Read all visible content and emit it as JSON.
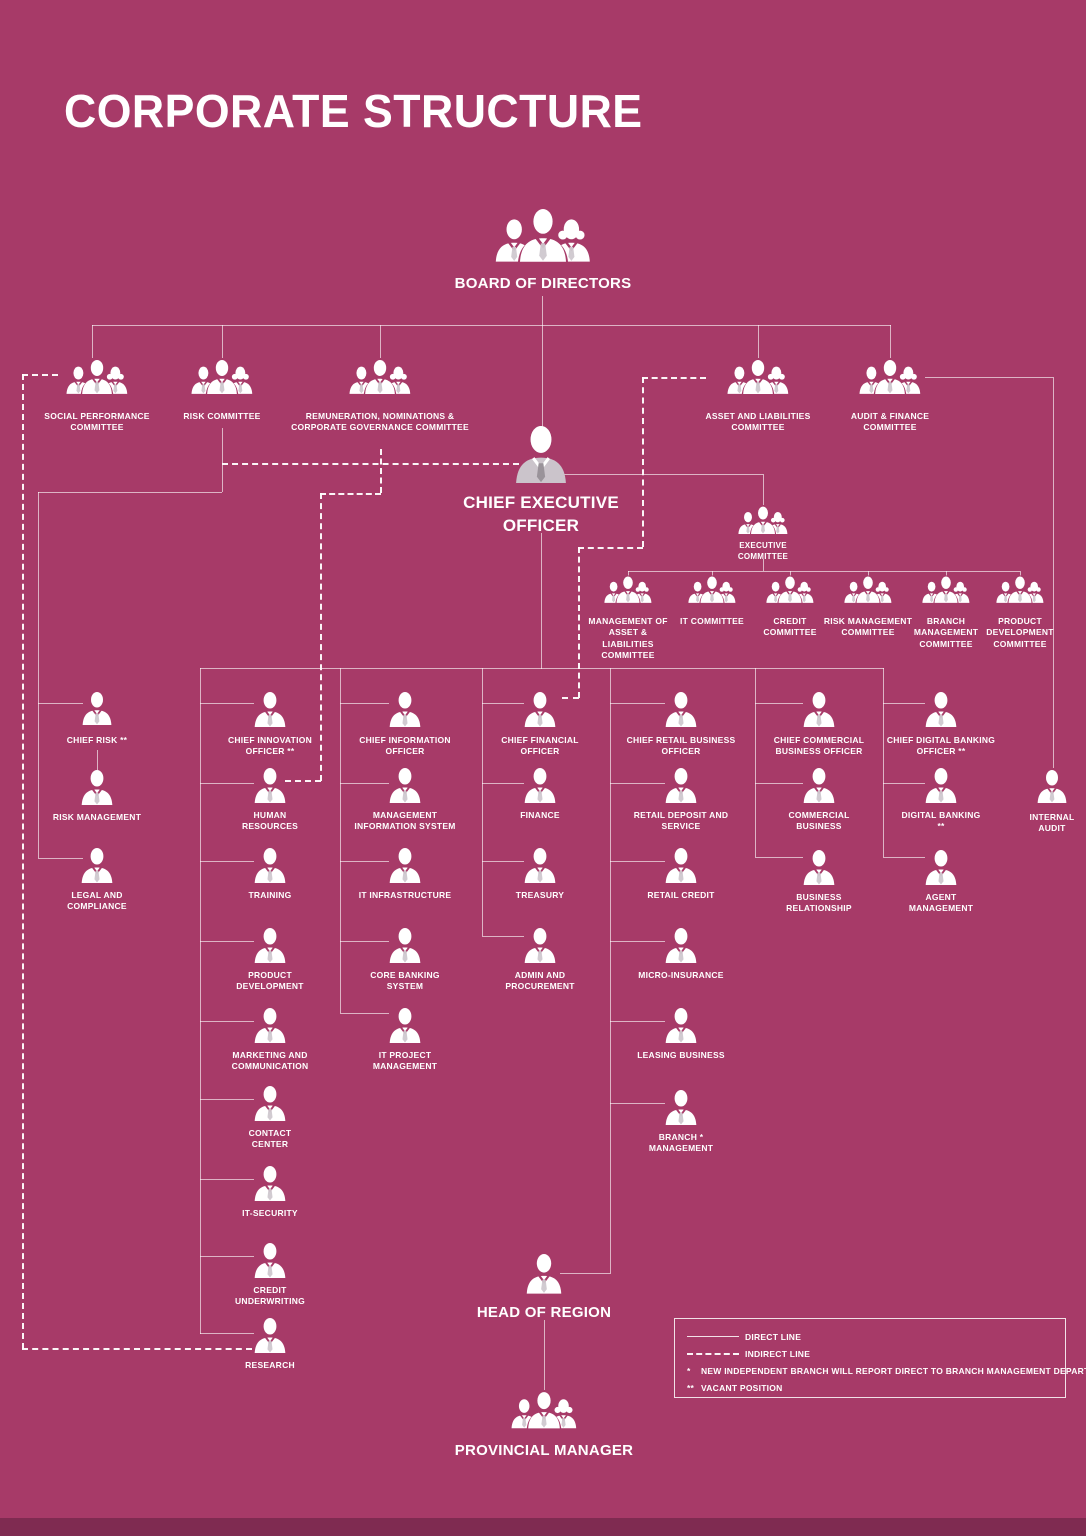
{
  "title": "CORPORATE STRUCTURE",
  "colors": {
    "background": "#a73a68",
    "footer_bar": "#7f2b51",
    "icon": "#ffffff",
    "line": "#ffffff"
  },
  "legend": {
    "direct_label": "DIRECT LINE",
    "indirect_label": "INDIRECT LINE",
    "note_independent_mark": "*",
    "note_independent": "NEW INDEPENDENT BRANCH WILL REPORT DIRECT TO BRANCH MANAGEMENT DEPARTMENT",
    "note_vacant_mark": "**",
    "note_vacant": "VACANT POSITION"
  },
  "nodes": {
    "board-of-directors": {
      "label": "BOARD OF DIRECTORS"
    },
    "social-performance-committee": {
      "label": "SOCIAL PERFORMANCE COMMITTEE"
    },
    "risk-committee": {
      "label": "RISK COMMITTEE"
    },
    "remuneration-nominations-corporate-governance-committee": {
      "label": "REMUNERATION, NOMINATIONS & CORPORATE GOVERNANCE COMMITTEE"
    },
    "asset-and-liabilities-committee": {
      "label": "ASSET AND LIABILITIES COMMITTEE"
    },
    "audit-finance-committee": {
      "label": "AUDIT & FINANCE COMMITTEE"
    },
    "ceo": {
      "label": "CHIEF EXECUTIVE OFFICER"
    },
    "executive-committee": {
      "label": "EXECUTIVE COMMITTEE"
    },
    "management-of-asset-liabilities-committee": {
      "label": "MANAGEMENT OF ASSET & LIABILITIES COMMITTEE"
    },
    "it-committee": {
      "label": "IT COMMITTEE"
    },
    "credit-committee": {
      "label": "CREDIT COMMITTEE"
    },
    "risk-management-committee": {
      "label": "RISK MANAGEMENT COMMITTEE"
    },
    "branch-management-committee": {
      "label": "BRANCH MANAGEMENT COMMITTEE"
    },
    "product-development-committee": {
      "label": "PRODUCT DEVELOPMENT COMMITTEE"
    },
    "chief-risk": {
      "label": "CHIEF RISK **"
    },
    "chief-innovation-officer": {
      "label": "CHIEF INNOVATION OFFICER **"
    },
    "chief-information-officer": {
      "label": "CHIEF INFORMATION OFFICER"
    },
    "chief-financial-officer": {
      "label": "CHIEF FINANCIAL OFFICER"
    },
    "chief-retail-business-officer": {
      "label": "CHIEF RETAIL BUSINESS OFFICER"
    },
    "chief-commercial-business-officer": {
      "label": "CHIEF COMMERCIAL BUSINESS OFFICER"
    },
    "chief-digital-banking-officer": {
      "label": "CHIEF DIGITAL BANKING OFFICER **"
    },
    "internal-audit": {
      "label": "INTERNAL AUDIT"
    },
    "risk-management": {
      "label": "RISK MANAGEMENT"
    },
    "legal-and-compliance": {
      "label": "LEGAL AND COMPLIANCE"
    },
    "human-resources": {
      "label": "HUMAN RESOURCES"
    },
    "training": {
      "label": "TRAINING"
    },
    "product-development": {
      "label": "PRODUCT DEVELOPMENT"
    },
    "marketing-and-communication": {
      "label": "MARKETING AND COMMUNICATION"
    },
    "contact-center": {
      "label": "CONTACT CENTER"
    },
    "it-security": {
      "label": "IT-SECURITY"
    },
    "credit-underwriting": {
      "label": "CREDIT UNDERWRITING"
    },
    "research": {
      "label": "RESEARCH"
    },
    "management-information-system": {
      "label": "MANAGEMENT INFORMATION SYSTEM"
    },
    "it-infrastructure": {
      "label": "IT INFRASTRUCTURE"
    },
    "core-banking-system": {
      "label": "CORE BANKING SYSTEM"
    },
    "it-project-management": {
      "label": "IT PROJECT MANAGEMENT"
    },
    "finance": {
      "label": "FINANCE"
    },
    "treasury": {
      "label": "TREASURY"
    },
    "admin-and-procurement": {
      "label": "ADMIN AND PROCUREMENT"
    },
    "retail-deposit-and-service": {
      "label": "RETAIL DEPOSIT AND SERVICE"
    },
    "retail-credit": {
      "label": "RETAIL CREDIT"
    },
    "micro-insurance": {
      "label": "MICRO-INSURANCE"
    },
    "leasing-business": {
      "label": "LEASING BUSINESS"
    },
    "branch-management": {
      "label": "BRANCH * MANAGEMENT"
    },
    "commercial-business": {
      "label": "COMMERCIAL BUSINESS"
    },
    "business-relationship": {
      "label": "BUSINESS RELATIONSHIP"
    },
    "digital-banking": {
      "label": "DIGITAL BANKING **"
    },
    "agent-management": {
      "label": "AGENT MANAGEMENT"
    },
    "head-of-region": {
      "label": "HEAD OF REGION"
    },
    "provincial-manager": {
      "label": "PROVINCIAL MANAGER"
    }
  }
}
